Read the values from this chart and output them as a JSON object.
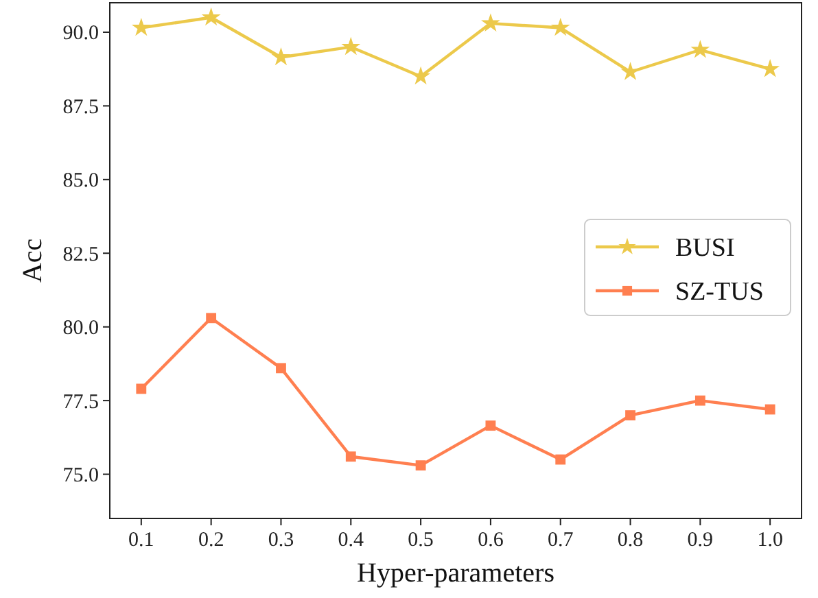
{
  "chart_data": {
    "type": "line",
    "xlabel": "Hyper-parameters",
    "ylabel": "Acc",
    "x": [
      0.1,
      0.2,
      0.3,
      0.4,
      0.5,
      0.6,
      0.7,
      0.8,
      0.9,
      1.0
    ],
    "xlim": [
      0.055,
      1.045
    ],
    "xticks": [
      {
        "value": 0.1,
        "label": "0.1"
      },
      {
        "value": 0.2,
        "label": "0.2"
      },
      {
        "value": 0.3,
        "label": "0.3"
      },
      {
        "value": 0.4,
        "label": "0.4"
      },
      {
        "value": 0.5,
        "label": "0.5"
      },
      {
        "value": 0.6,
        "label": "0.6"
      },
      {
        "value": 0.7,
        "label": "0.7"
      },
      {
        "value": 0.8,
        "label": "0.8"
      },
      {
        "value": 0.9,
        "label": "0.9"
      },
      {
        "value": 1.0,
        "label": "1.0"
      }
    ],
    "ylim": [
      73.5,
      91.0
    ],
    "yticks": [
      {
        "value": 75,
        "label": "75.0"
      },
      {
        "value": 77.5,
        "label": "77.5"
      },
      {
        "value": 80,
        "label": "80.0"
      },
      {
        "value": 82.5,
        "label": "82.5"
      },
      {
        "value": 85,
        "label": "85.0"
      },
      {
        "value": 87.5,
        "label": "87.5"
      },
      {
        "value": 90,
        "label": "90.0"
      }
    ],
    "series": [
      {
        "name": "BUSI",
        "color": "#ecc94b",
        "marker": "star",
        "values": [
          90.15,
          90.5,
          89.15,
          89.5,
          88.5,
          90.3,
          90.15,
          88.65,
          89.4,
          88.75
        ]
      },
      {
        "name": "SZ-TUS",
        "color": "#ff7f50",
        "marker": "square",
        "values": [
          77.9,
          80.3,
          78.6,
          75.6,
          75.3,
          76.65,
          75.5,
          77.0,
          77.5,
          77.2
        ]
      }
    ],
    "legend": "right",
    "grid": false
  }
}
